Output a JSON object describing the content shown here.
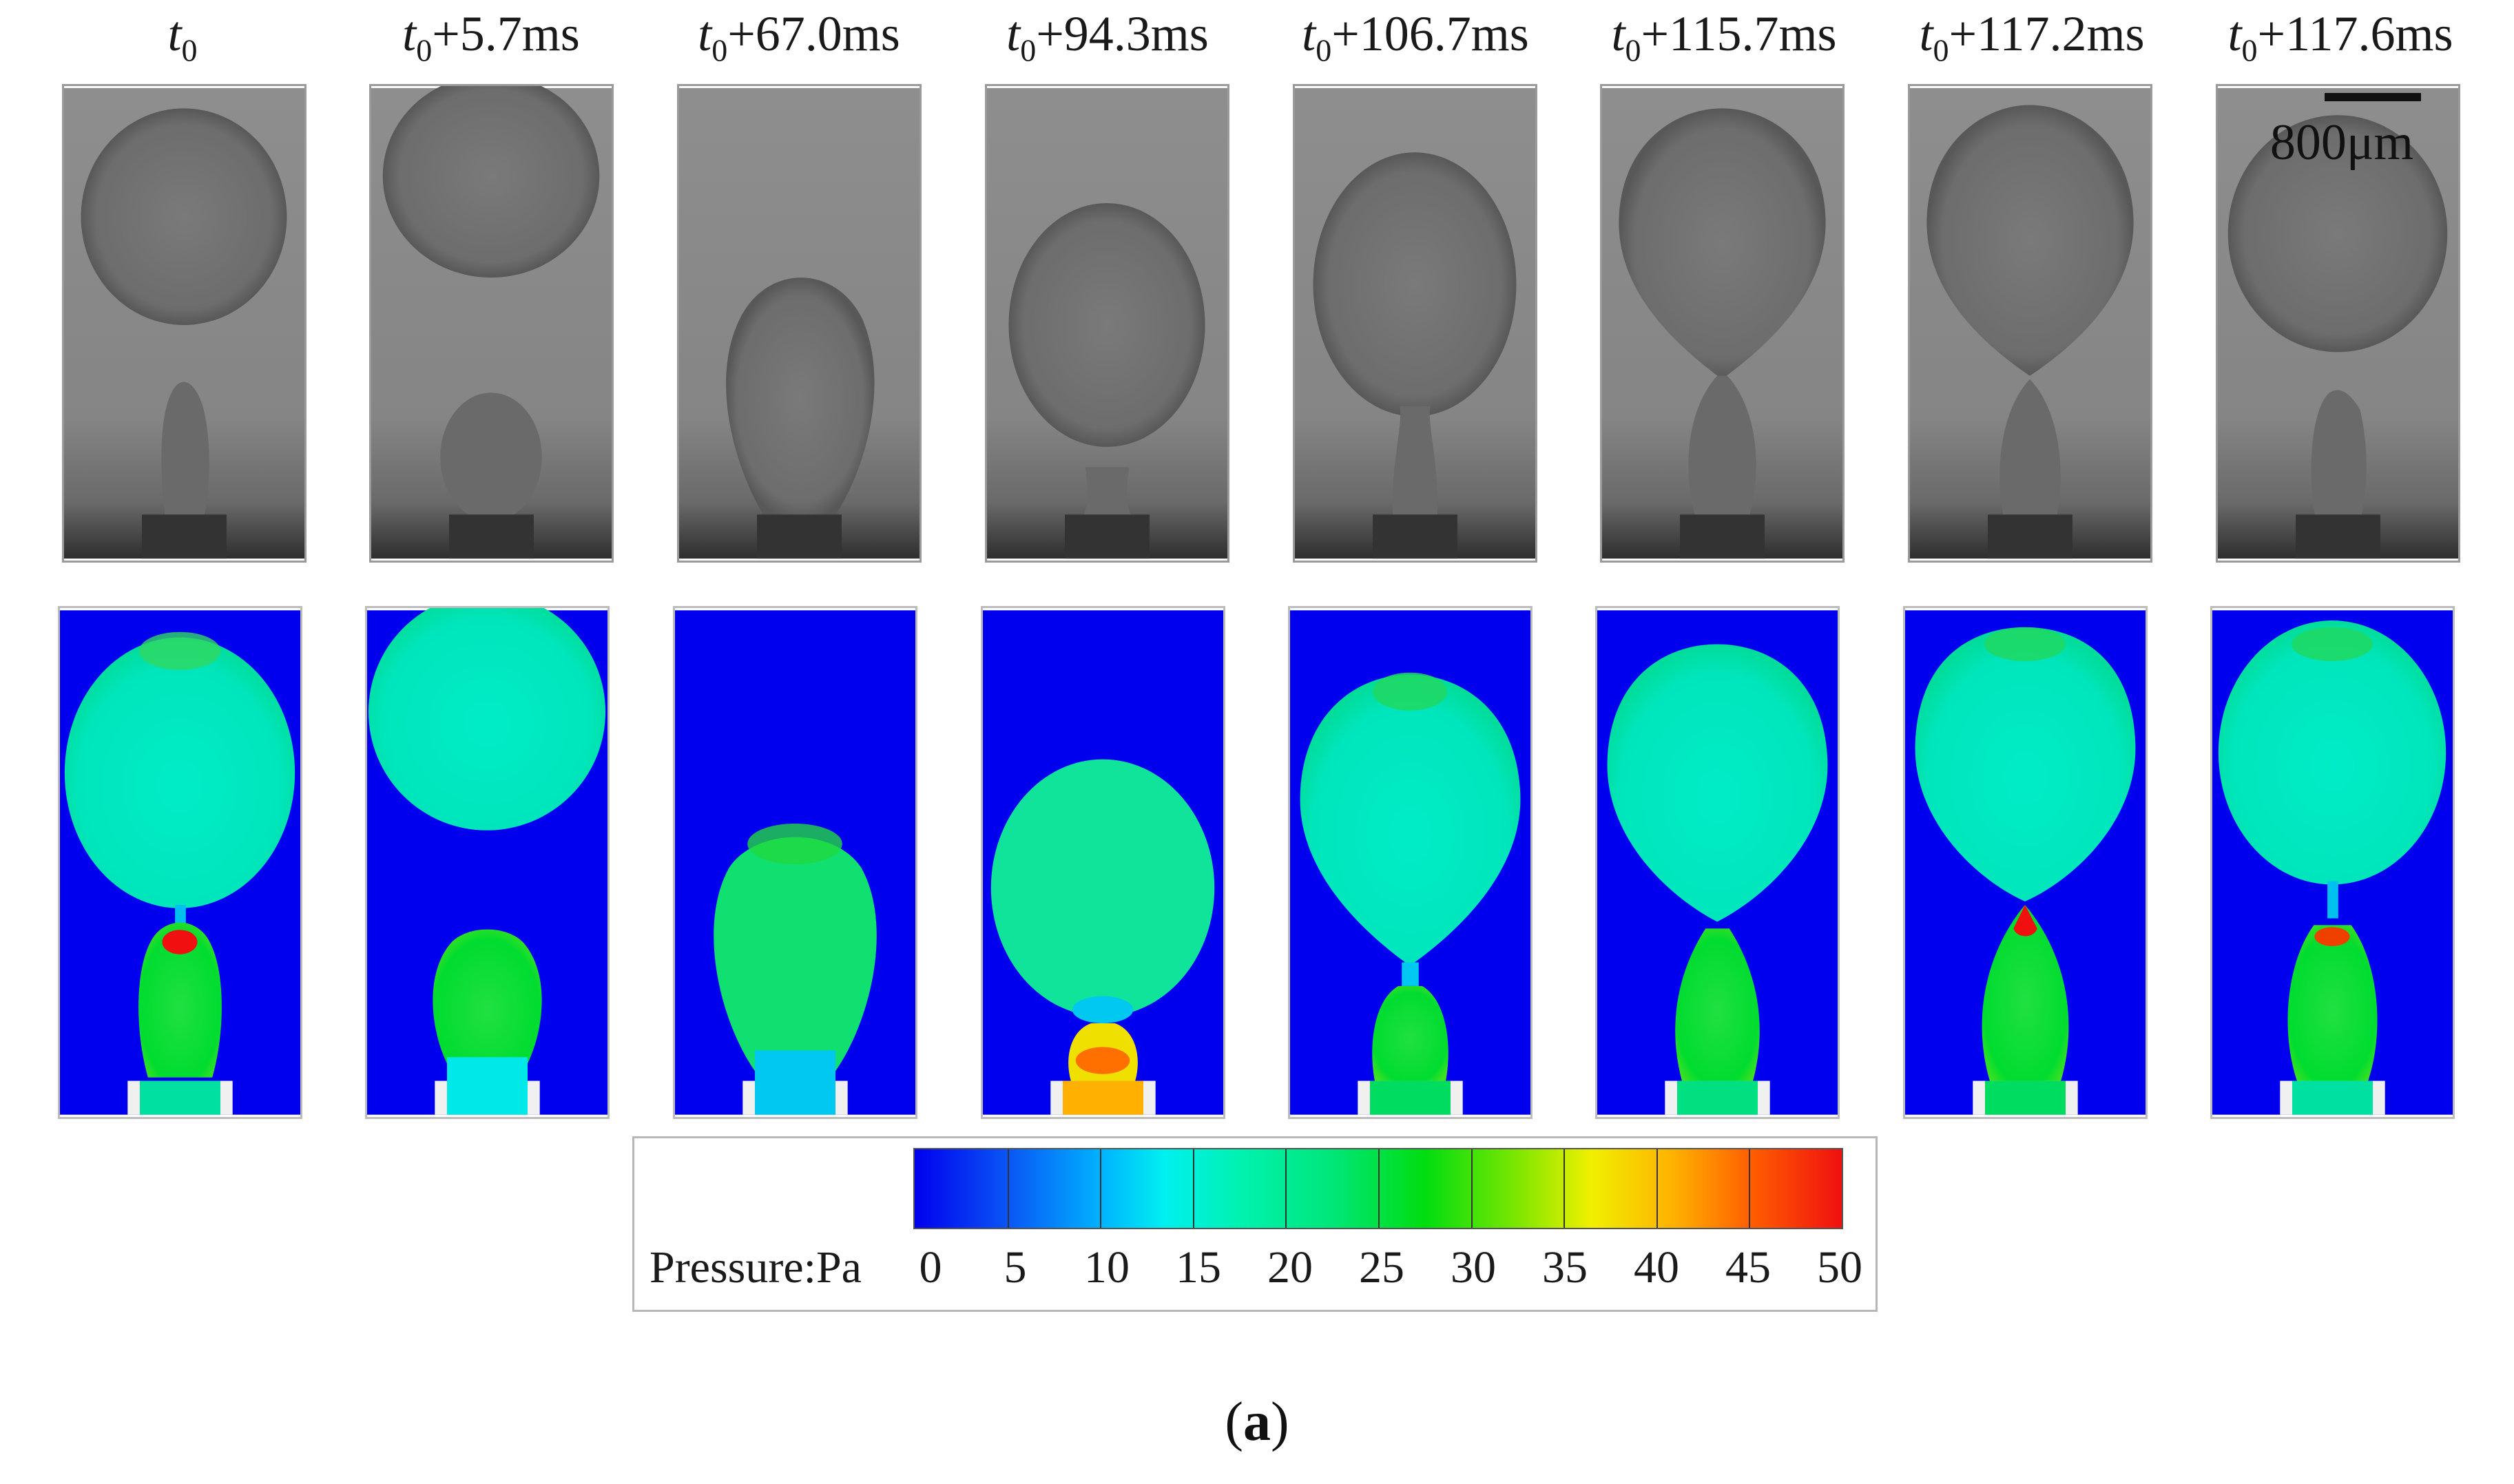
{
  "frames": [
    {
      "base": "t",
      "sub": "0",
      "offset": ""
    },
    {
      "base": "t",
      "sub": "0",
      "offset": "+5.7ms"
    },
    {
      "base": "t",
      "sub": "0",
      "offset": "+67.0ms"
    },
    {
      "base": "t",
      "sub": "0",
      "offset": "+94.3ms"
    },
    {
      "base": "t",
      "sub": "0",
      "offset": "+106.7ms"
    },
    {
      "base": "t",
      "sub": "0",
      "offset": "+115.7ms"
    },
    {
      "base": "t",
      "sub": "0",
      "offset": "+117.2ms"
    },
    {
      "base": "t",
      "sub": "0",
      "offset": "+117.6ms"
    }
  ],
  "scale_bar": {
    "label": "800μm"
  },
  "legend": {
    "title": "Pressure:Pa",
    "ticks": [
      "0",
      "5",
      "10",
      "15",
      "20",
      "25",
      "30",
      "35",
      "40",
      "45",
      "50"
    ],
    "min": 0,
    "max": 50
  },
  "panel_label": {
    "open": "(",
    "letter": "a",
    "close": ")"
  },
  "colors": {
    "background_field": "#0000ee",
    "droplet_cyan": "#00e6c0",
    "droplet_green": "#00dd30",
    "peak_red": "#f01010",
    "photo_gray": "#8c8c8c"
  }
}
